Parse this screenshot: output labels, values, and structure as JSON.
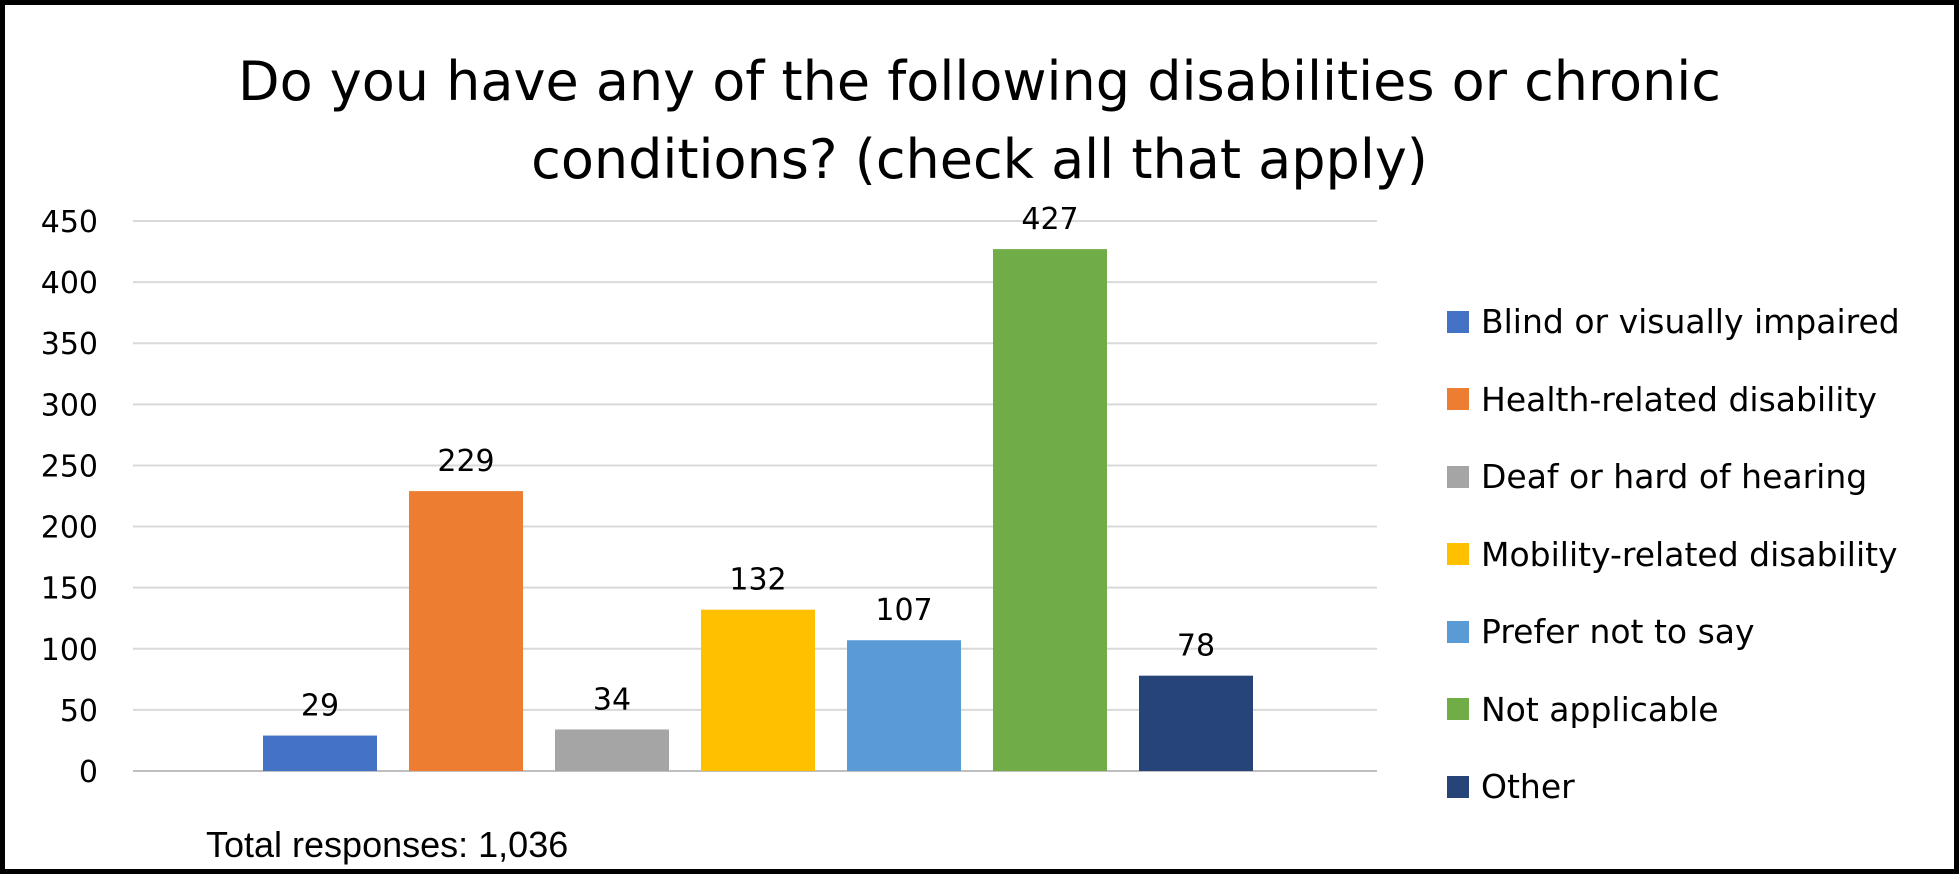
{
  "chart_data": {
    "type": "bar",
    "title_lines": [
      "Do you have any of the following disabilities or chronic",
      "conditions? (check all that apply)"
    ],
    "categories": [
      "Blind or visually impaired",
      "Health-related disability",
      "Deaf or hard of hearing",
      "Mobility-related disability",
      "Prefer not to say",
      "Not applicable",
      "Other"
    ],
    "values": [
      29,
      229,
      34,
      132,
      107,
      427,
      78
    ],
    "data_labels": [
      "29",
      "229",
      "34",
      "132",
      "107",
      "427",
      "78"
    ],
    "colors": [
      "#4472C4",
      "#ED7D31",
      "#A5A5A5",
      "#FFC000",
      "#5B9BD5",
      "#70AD47",
      "#264478"
    ],
    "ylim": [
      0,
      450
    ],
    "yticks": [
      0,
      50,
      100,
      150,
      200,
      250,
      300,
      350,
      400,
      450
    ],
    "ytick_labels": [
      "0",
      "50",
      "100",
      "150",
      "200",
      "250",
      "300",
      "350",
      "400",
      "450"
    ],
    "grid": true,
    "legend_position": "right",
    "xlabel": "",
    "ylabel": ""
  },
  "footnote": "Total responses: 1,036"
}
